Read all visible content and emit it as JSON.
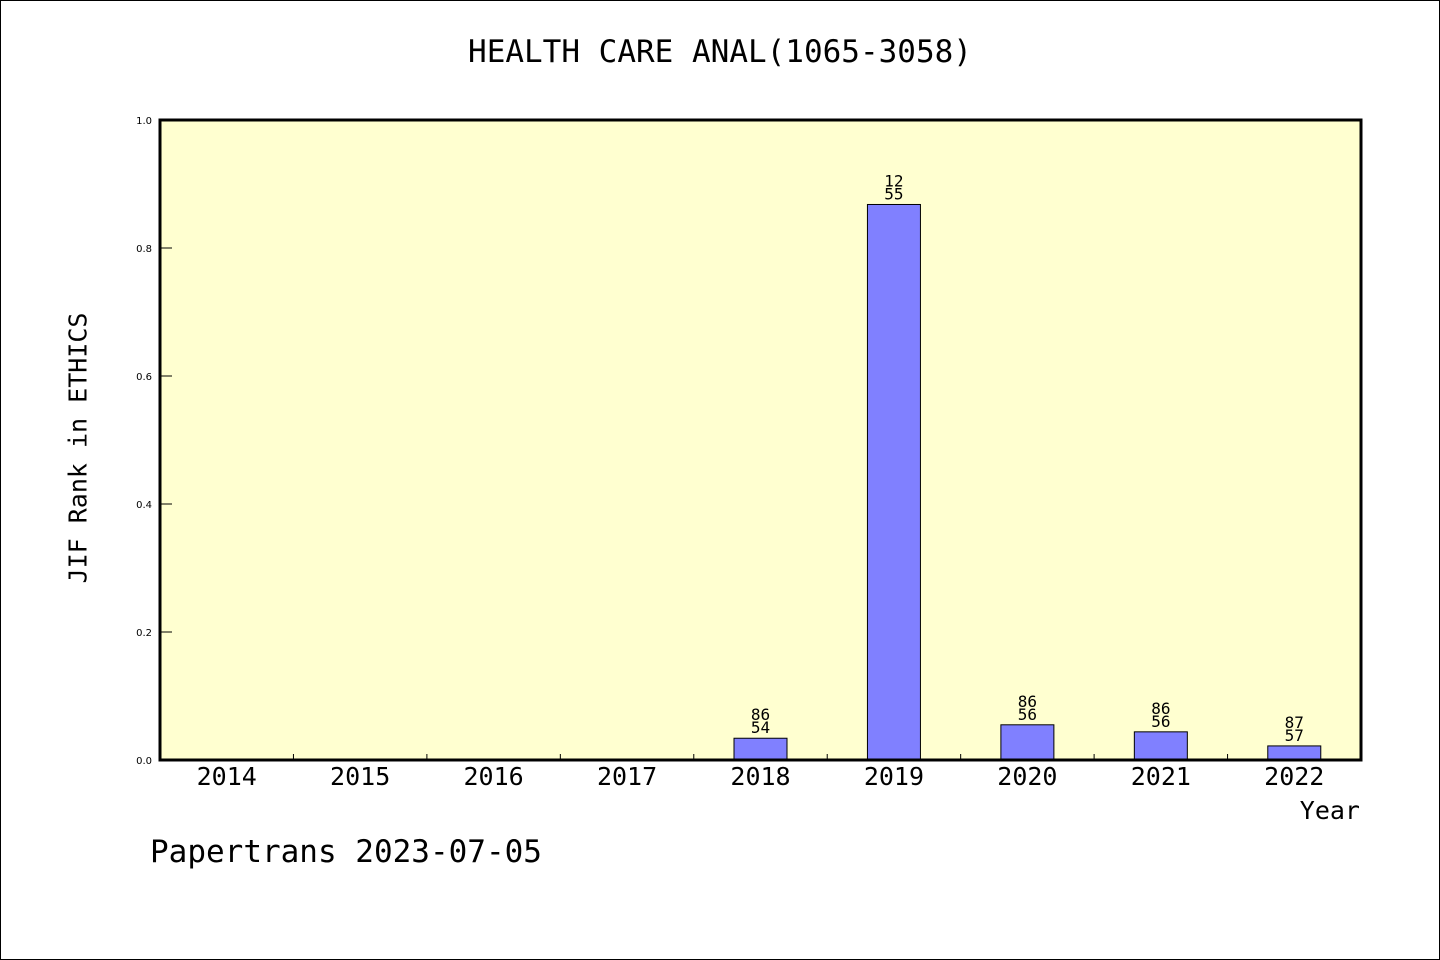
{
  "page": {
    "title": "HEALTH CARE ANAL(1065-3058)",
    "footer": "Papertrans 2023-07-05"
  },
  "chart_data": {
    "type": "bar",
    "title": "HEALTH CARE ANAL(1065-3058)",
    "xlabel": "Year",
    "ylabel": "JIF Rank in ETHICS",
    "categories": [
      "2014",
      "2015",
      "2016",
      "2017",
      "2018",
      "2019",
      "2020",
      "2021",
      "2022"
    ],
    "values": [
      null,
      null,
      null,
      null,
      0.034,
      0.868,
      0.055,
      0.044,
      0.022
    ],
    "data_labels": [
      [
        "",
        ""
      ],
      [
        "",
        ""
      ],
      [
        "",
        ""
      ],
      [
        "",
        ""
      ],
      [
        "86",
        "54"
      ],
      [
        "12",
        "55"
      ],
      [
        "86",
        "56"
      ],
      [
        "86",
        "56"
      ],
      [
        "87",
        "57"
      ]
    ],
    "ylim": [
      0,
      1.0
    ],
    "yticks": [
      "0.0",
      "0.2",
      "0.4",
      "0.6",
      "0.8",
      "1.0"
    ],
    "grid": false,
    "colors": {
      "plot_background": "#FFFFD0",
      "bar_fill": "#8080FF",
      "bar_edge": "#000000"
    }
  }
}
